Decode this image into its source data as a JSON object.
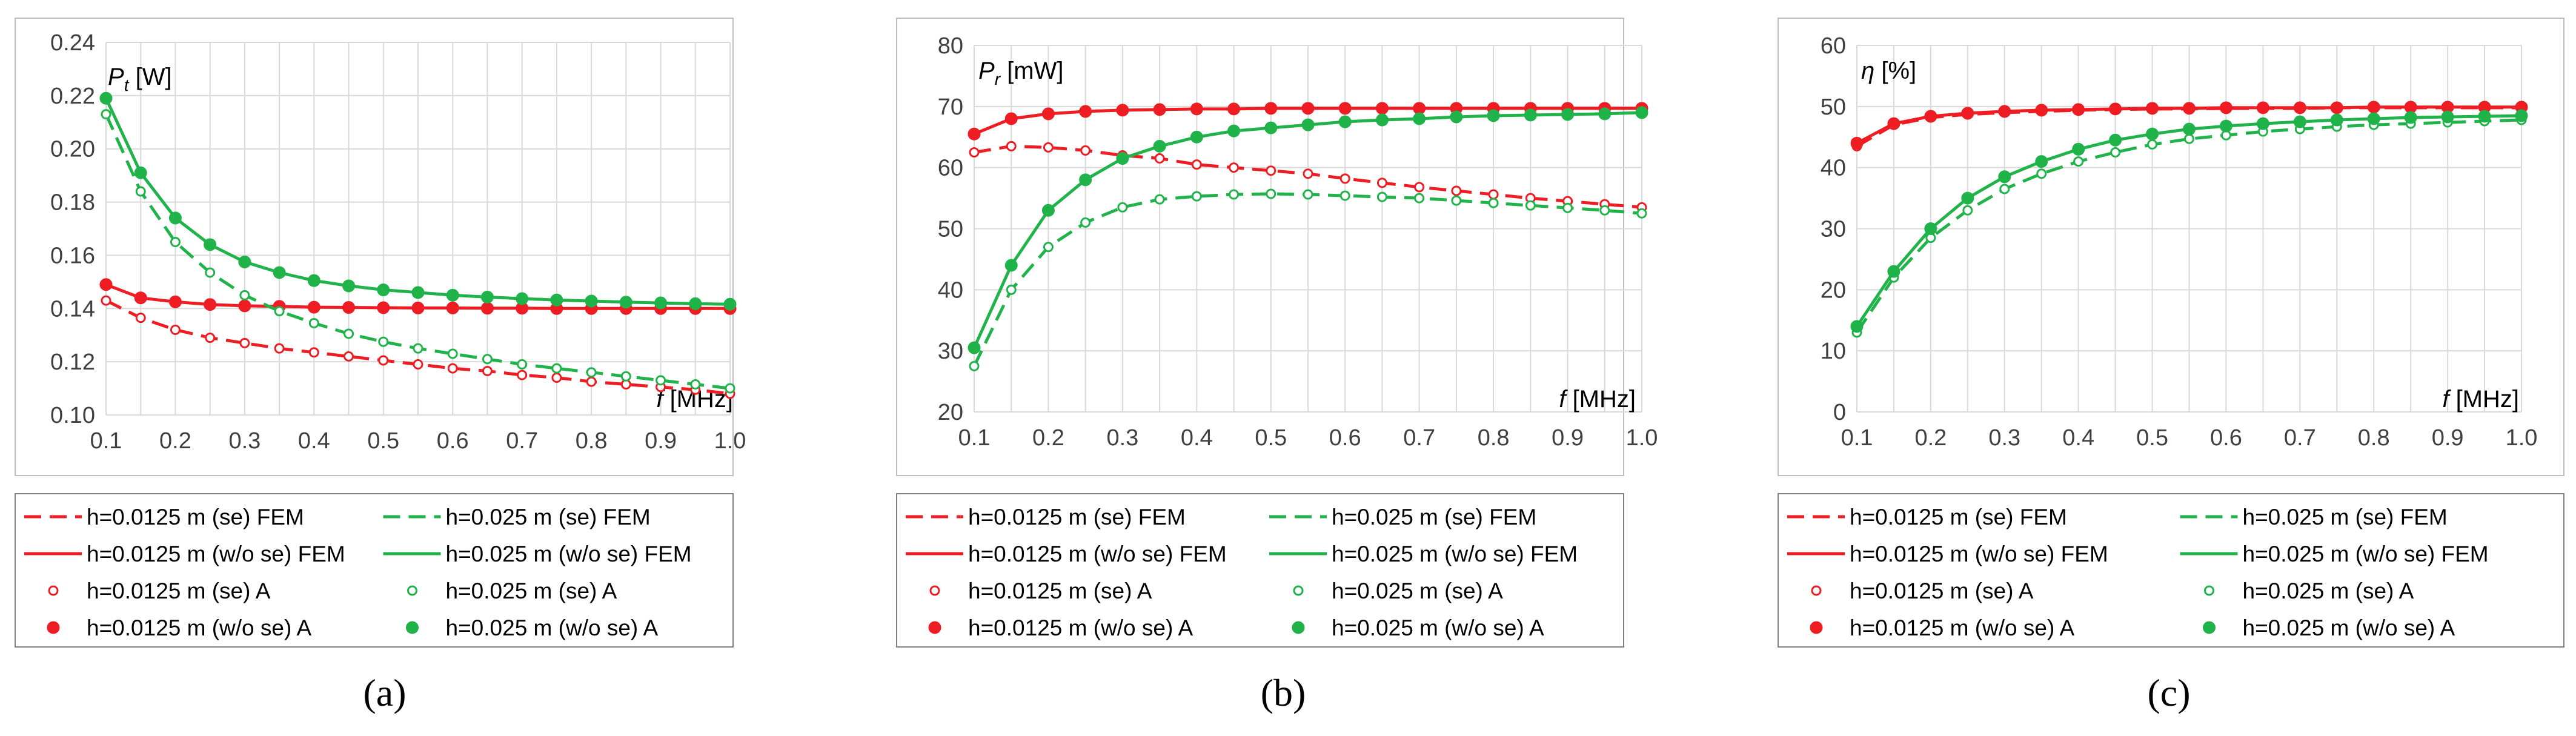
{
  "chart_data": [
    {
      "type": "line",
      "panel_label": "(a)",
      "ylabel_symbol": "P",
      "ylabel_sub": "t",
      "ylabel_unit": " [W]",
      "xlabel_symbol": "f",
      "xlabel_unit": " [MHz]",
      "ylim": [
        0.1,
        0.24
      ],
      "yticks": [
        "0.10",
        "0.12",
        "0.14",
        "0.16",
        "0.18",
        "0.20",
        "0.22",
        "0.24"
      ],
      "xlim": [
        0.1,
        1.0
      ],
      "xticks": [
        "0.1",
        "0.2",
        "0.3",
        "0.4",
        "0.5",
        "0.6",
        "0.7",
        "0.8",
        "0.9",
        "1.0"
      ],
      "x": [
        0.1,
        0.15,
        0.2,
        0.25,
        0.3,
        0.35,
        0.4,
        0.45,
        0.5,
        0.55,
        0.6,
        0.65,
        0.7,
        0.75,
        0.8,
        0.85,
        0.9,
        0.95,
        1.0
      ],
      "series": [
        {
          "name": "h=0.0125 m (se)",
          "values": [
            0.143,
            0.1365,
            0.132,
            0.129,
            0.127,
            0.125,
            0.1235,
            0.122,
            0.1205,
            0.119,
            0.1175,
            0.1165,
            0.115,
            0.114,
            0.1125,
            0.1115,
            0.1105,
            0.1095,
            0.108
          ]
        },
        {
          "name": "h=0.0125 m (w/o se)",
          "values": [
            0.149,
            0.144,
            0.1425,
            0.1415,
            0.141,
            0.1408,
            0.1405,
            0.1404,
            0.1403,
            0.1402,
            0.1402,
            0.1401,
            0.1401,
            0.14,
            0.14,
            0.14,
            0.14,
            0.14,
            0.14
          ]
        },
        {
          "name": "h=0.025 m (se)",
          "values": [
            0.213,
            0.184,
            0.165,
            0.1535,
            0.145,
            0.139,
            0.1345,
            0.1305,
            0.1275,
            0.125,
            0.123,
            0.121,
            0.119,
            0.1175,
            0.116,
            0.1145,
            0.113,
            0.1115,
            0.11
          ]
        },
        {
          "name": "h=0.025 m (w/o se)",
          "values": [
            0.219,
            0.191,
            0.174,
            0.164,
            0.1575,
            0.1535,
            0.1505,
            0.1485,
            0.147,
            0.146,
            0.145,
            0.1443,
            0.1437,
            0.1432,
            0.1428,
            0.1424,
            0.1421,
            0.1418,
            0.1416
          ]
        }
      ]
    },
    {
      "type": "line",
      "panel_label": "(b)",
      "ylabel_symbol": "P",
      "ylabel_sub": "r",
      "ylabel_unit": " [mW]",
      "xlabel_symbol": "f",
      "xlabel_unit": " [MHz]",
      "ylim": [
        20,
        80
      ],
      "yticks": [
        "20",
        "30",
        "40",
        "50",
        "60",
        "70",
        "80"
      ],
      "xlim": [
        0.1,
        1.0
      ],
      "xticks": [
        "0.1",
        "0.2",
        "0.3",
        "0.4",
        "0.5",
        "0.6",
        "0.7",
        "0.8",
        "0.9",
        "1.0"
      ],
      "x": [
        0.1,
        0.15,
        0.2,
        0.25,
        0.3,
        0.35,
        0.4,
        0.45,
        0.5,
        0.55,
        0.6,
        0.65,
        0.7,
        0.75,
        0.8,
        0.85,
        0.9,
        0.95,
        1.0
      ],
      "series": [
        {
          "name": "h=0.0125 m (se)",
          "values": [
            62.5,
            63.5,
            63.3,
            62.8,
            62.0,
            61.5,
            60.5,
            60.0,
            59.5,
            59.0,
            58.2,
            57.5,
            56.8,
            56.2,
            55.6,
            55.0,
            54.5,
            54.0,
            53.5
          ]
        },
        {
          "name": "h=0.0125 m (w/o se)",
          "values": [
            65.5,
            68.0,
            68.8,
            69.2,
            69.4,
            69.5,
            69.6,
            69.6,
            69.7,
            69.7,
            69.7,
            69.7,
            69.7,
            69.7,
            69.7,
            69.7,
            69.7,
            69.7,
            69.7
          ]
        },
        {
          "name": "h=0.025 m (se)",
          "values": [
            27.5,
            40.0,
            47.0,
            51.0,
            53.5,
            54.8,
            55.3,
            55.6,
            55.7,
            55.6,
            55.4,
            55.2,
            55.0,
            54.6,
            54.2,
            53.8,
            53.4,
            53.0,
            52.5
          ]
        },
        {
          "name": "h=0.025 m (w/o se)",
          "values": [
            30.5,
            44.0,
            53.0,
            58.0,
            61.5,
            63.5,
            65.0,
            66.0,
            66.5,
            67.0,
            67.5,
            67.8,
            68.0,
            68.3,
            68.5,
            68.6,
            68.7,
            68.8,
            69.0
          ]
        }
      ]
    },
    {
      "type": "line",
      "panel_label": "(c)",
      "ylabel_symbol": "η",
      "ylabel_sub": "",
      "ylabel_unit": " [%]",
      "xlabel_symbol": "f",
      "xlabel_unit": " [MHz]",
      "ylim": [
        0,
        60
      ],
      "yticks": [
        "0",
        "10",
        "20",
        "30",
        "40",
        "50",
        "60"
      ],
      "xlim": [
        0.1,
        1.0
      ],
      "xticks": [
        "0.1",
        "0.2",
        "0.3",
        "0.4",
        "0.5",
        "0.6",
        "0.7",
        "0.8",
        "0.9",
        "1.0"
      ],
      "x": [
        0.1,
        0.15,
        0.2,
        0.25,
        0.3,
        0.35,
        0.4,
        0.45,
        0.5,
        0.55,
        0.6,
        0.65,
        0.7,
        0.75,
        0.8,
        0.85,
        0.9,
        0.95,
        1.0
      ],
      "series": [
        {
          "name": "h=0.0125 m (se)",
          "values": [
            43.5,
            47.0,
            48.2,
            48.7,
            49.0,
            49.2,
            49.4,
            49.5,
            49.6,
            49.6,
            49.7,
            49.7,
            49.7,
            49.8,
            49.8,
            49.8,
            49.8,
            49.8,
            49.8
          ]
        },
        {
          "name": "h=0.0125 m (w/o se)",
          "values": [
            44.0,
            47.2,
            48.4,
            48.9,
            49.2,
            49.4,
            49.5,
            49.6,
            49.7,
            49.7,
            49.8,
            49.8,
            49.8,
            49.8,
            49.9,
            49.9,
            49.9,
            49.9,
            49.9
          ]
        },
        {
          "name": "h=0.025 m (se)",
          "values": [
            13.0,
            22.0,
            28.5,
            33.0,
            36.5,
            39.0,
            41.0,
            42.5,
            43.8,
            44.7,
            45.3,
            45.9,
            46.3,
            46.7,
            47.0,
            47.2,
            47.4,
            47.6,
            47.8
          ]
        },
        {
          "name": "h=0.025 m (w/o se)",
          "values": [
            14.0,
            23.0,
            30.0,
            35.0,
            38.5,
            41.0,
            43.0,
            44.5,
            45.5,
            46.3,
            46.8,
            47.2,
            47.5,
            47.8,
            48.0,
            48.2,
            48.3,
            48.4,
            48.5
          ]
        }
      ]
    }
  ],
  "legend": {
    "items": [
      {
        "label": "h=0.0125 m (se) FEM",
        "color": "#ee1d23",
        "style": "dash"
      },
      {
        "label": "h=0.025 m (se) FEM",
        "color": "#1fb34a",
        "style": "dash"
      },
      {
        "label": "h=0.0125 m (w/o se) FEM",
        "color": "#ee1d23",
        "style": "solid"
      },
      {
        "label": "h=0.025 m (w/o se) FEM",
        "color": "#1fb34a",
        "style": "solid"
      },
      {
        "label": "h=0.0125 m (se) A",
        "color": "#ee1d23",
        "style": "open"
      },
      {
        "label": "h=0.025 m (se) A",
        "color": "#1fb34a",
        "style": "open"
      },
      {
        "label": "h=0.0125 m (w/o se) A",
        "color": "#ee1d23",
        "style": "filled"
      },
      {
        "label": "h=0.025 m (w/o se) A",
        "color": "#1fb34a",
        "style": "filled"
      }
    ]
  },
  "colors": {
    "red": "#ee1d23",
    "green": "#1fb34a",
    "grid": "#d9d9d9",
    "frame": "#bfbfbf",
    "text": "#404040"
  }
}
